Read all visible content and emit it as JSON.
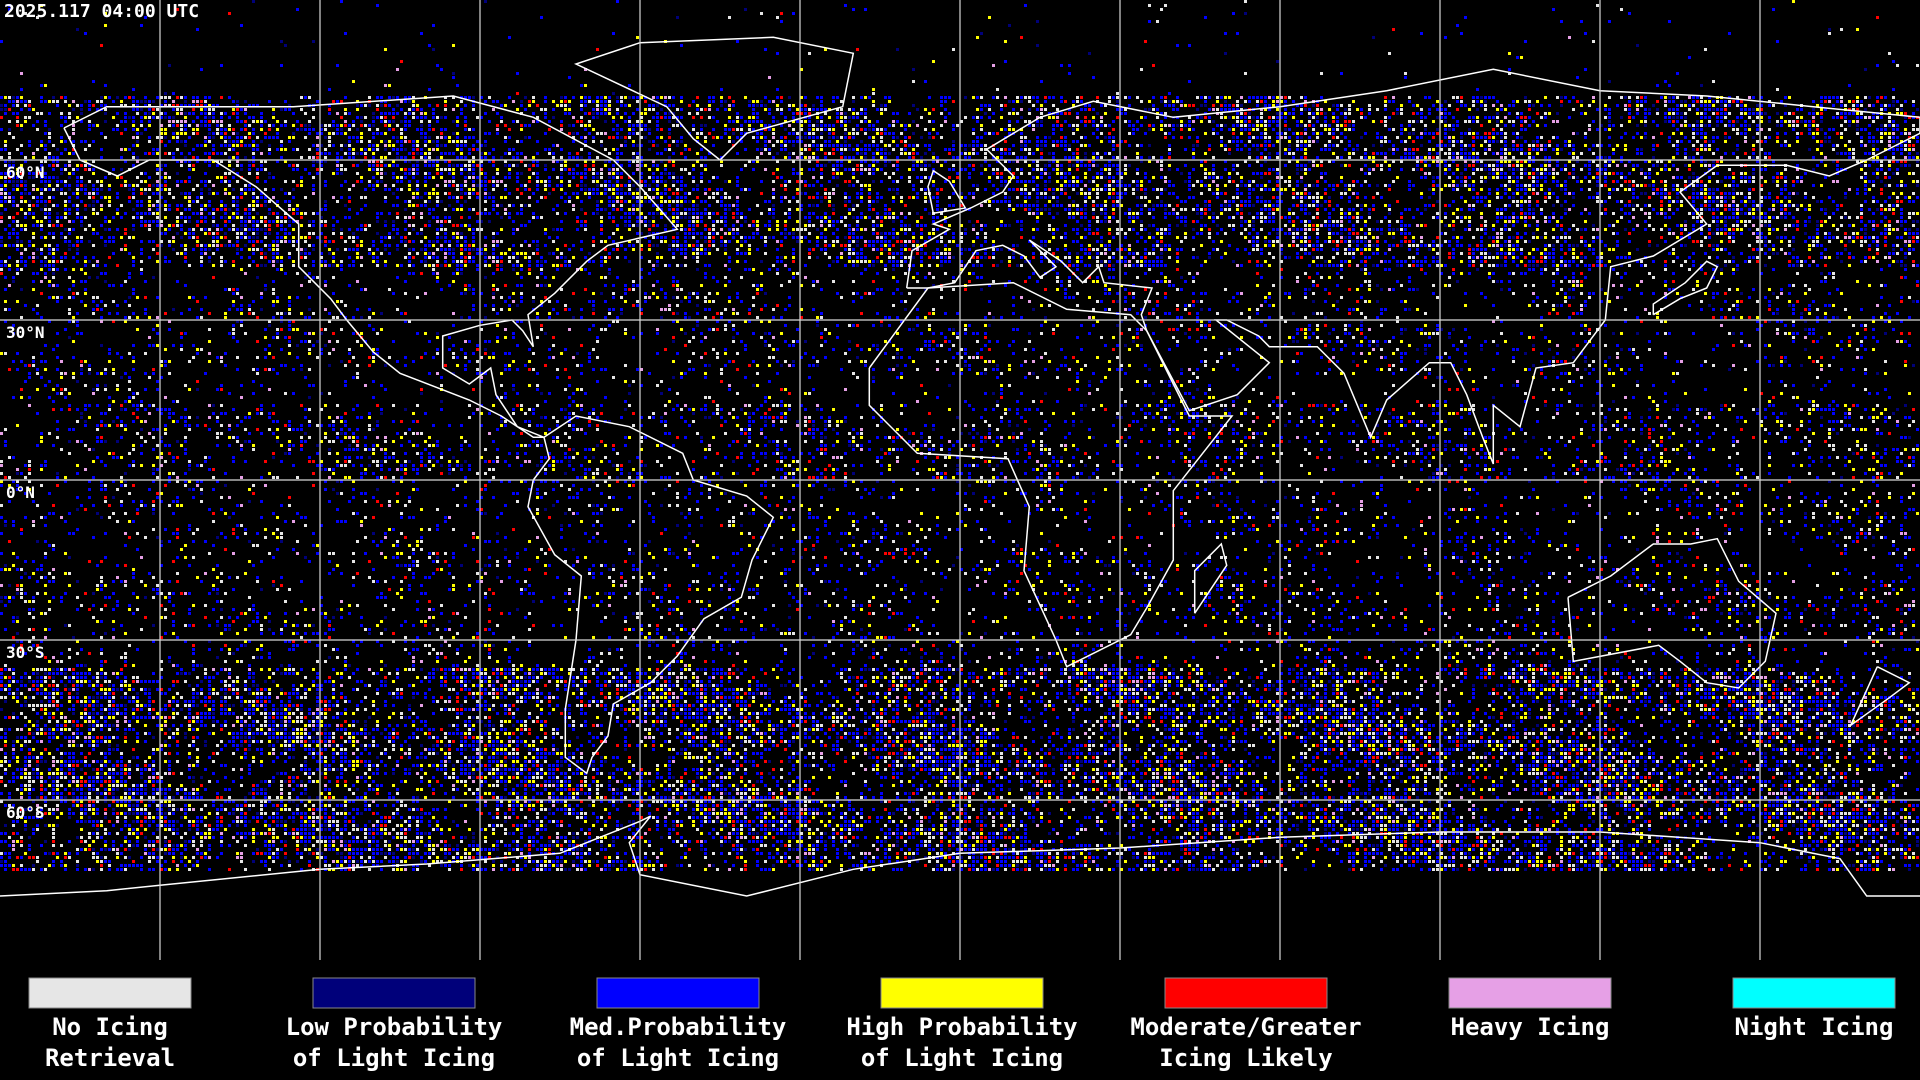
{
  "header": {
    "timestamp": "2025.117 04:00 UTC"
  },
  "map": {
    "lat_labels": [
      "60°N",
      "30°N",
      "0°N",
      "30°S",
      "60°S"
    ]
  },
  "legend": {
    "items": [
      {
        "lines": [
          "No Icing",
          "Retrieval"
        ],
        "color": "#e6e6e6"
      },
      {
        "lines": [
          "Low Probability",
          "of Light Icing"
        ],
        "color": "#00007a"
      },
      {
        "lines": [
          "Med.Probability",
          "of Light Icing"
        ],
        "color": "#0000ff"
      },
      {
        "lines": [
          "High Probability",
          "of Light Icing"
        ],
        "color": "#ffff00"
      },
      {
        "lines": [
          "Moderate/Greater",
          "Icing Likely"
        ],
        "color": "#ff0000"
      },
      {
        "lines": [
          "Heavy Icing"
        ],
        "color": "#e6a0e6"
      },
      {
        "lines": [
          "Night Icing"
        ],
        "color": "#00ffff"
      }
    ]
  }
}
